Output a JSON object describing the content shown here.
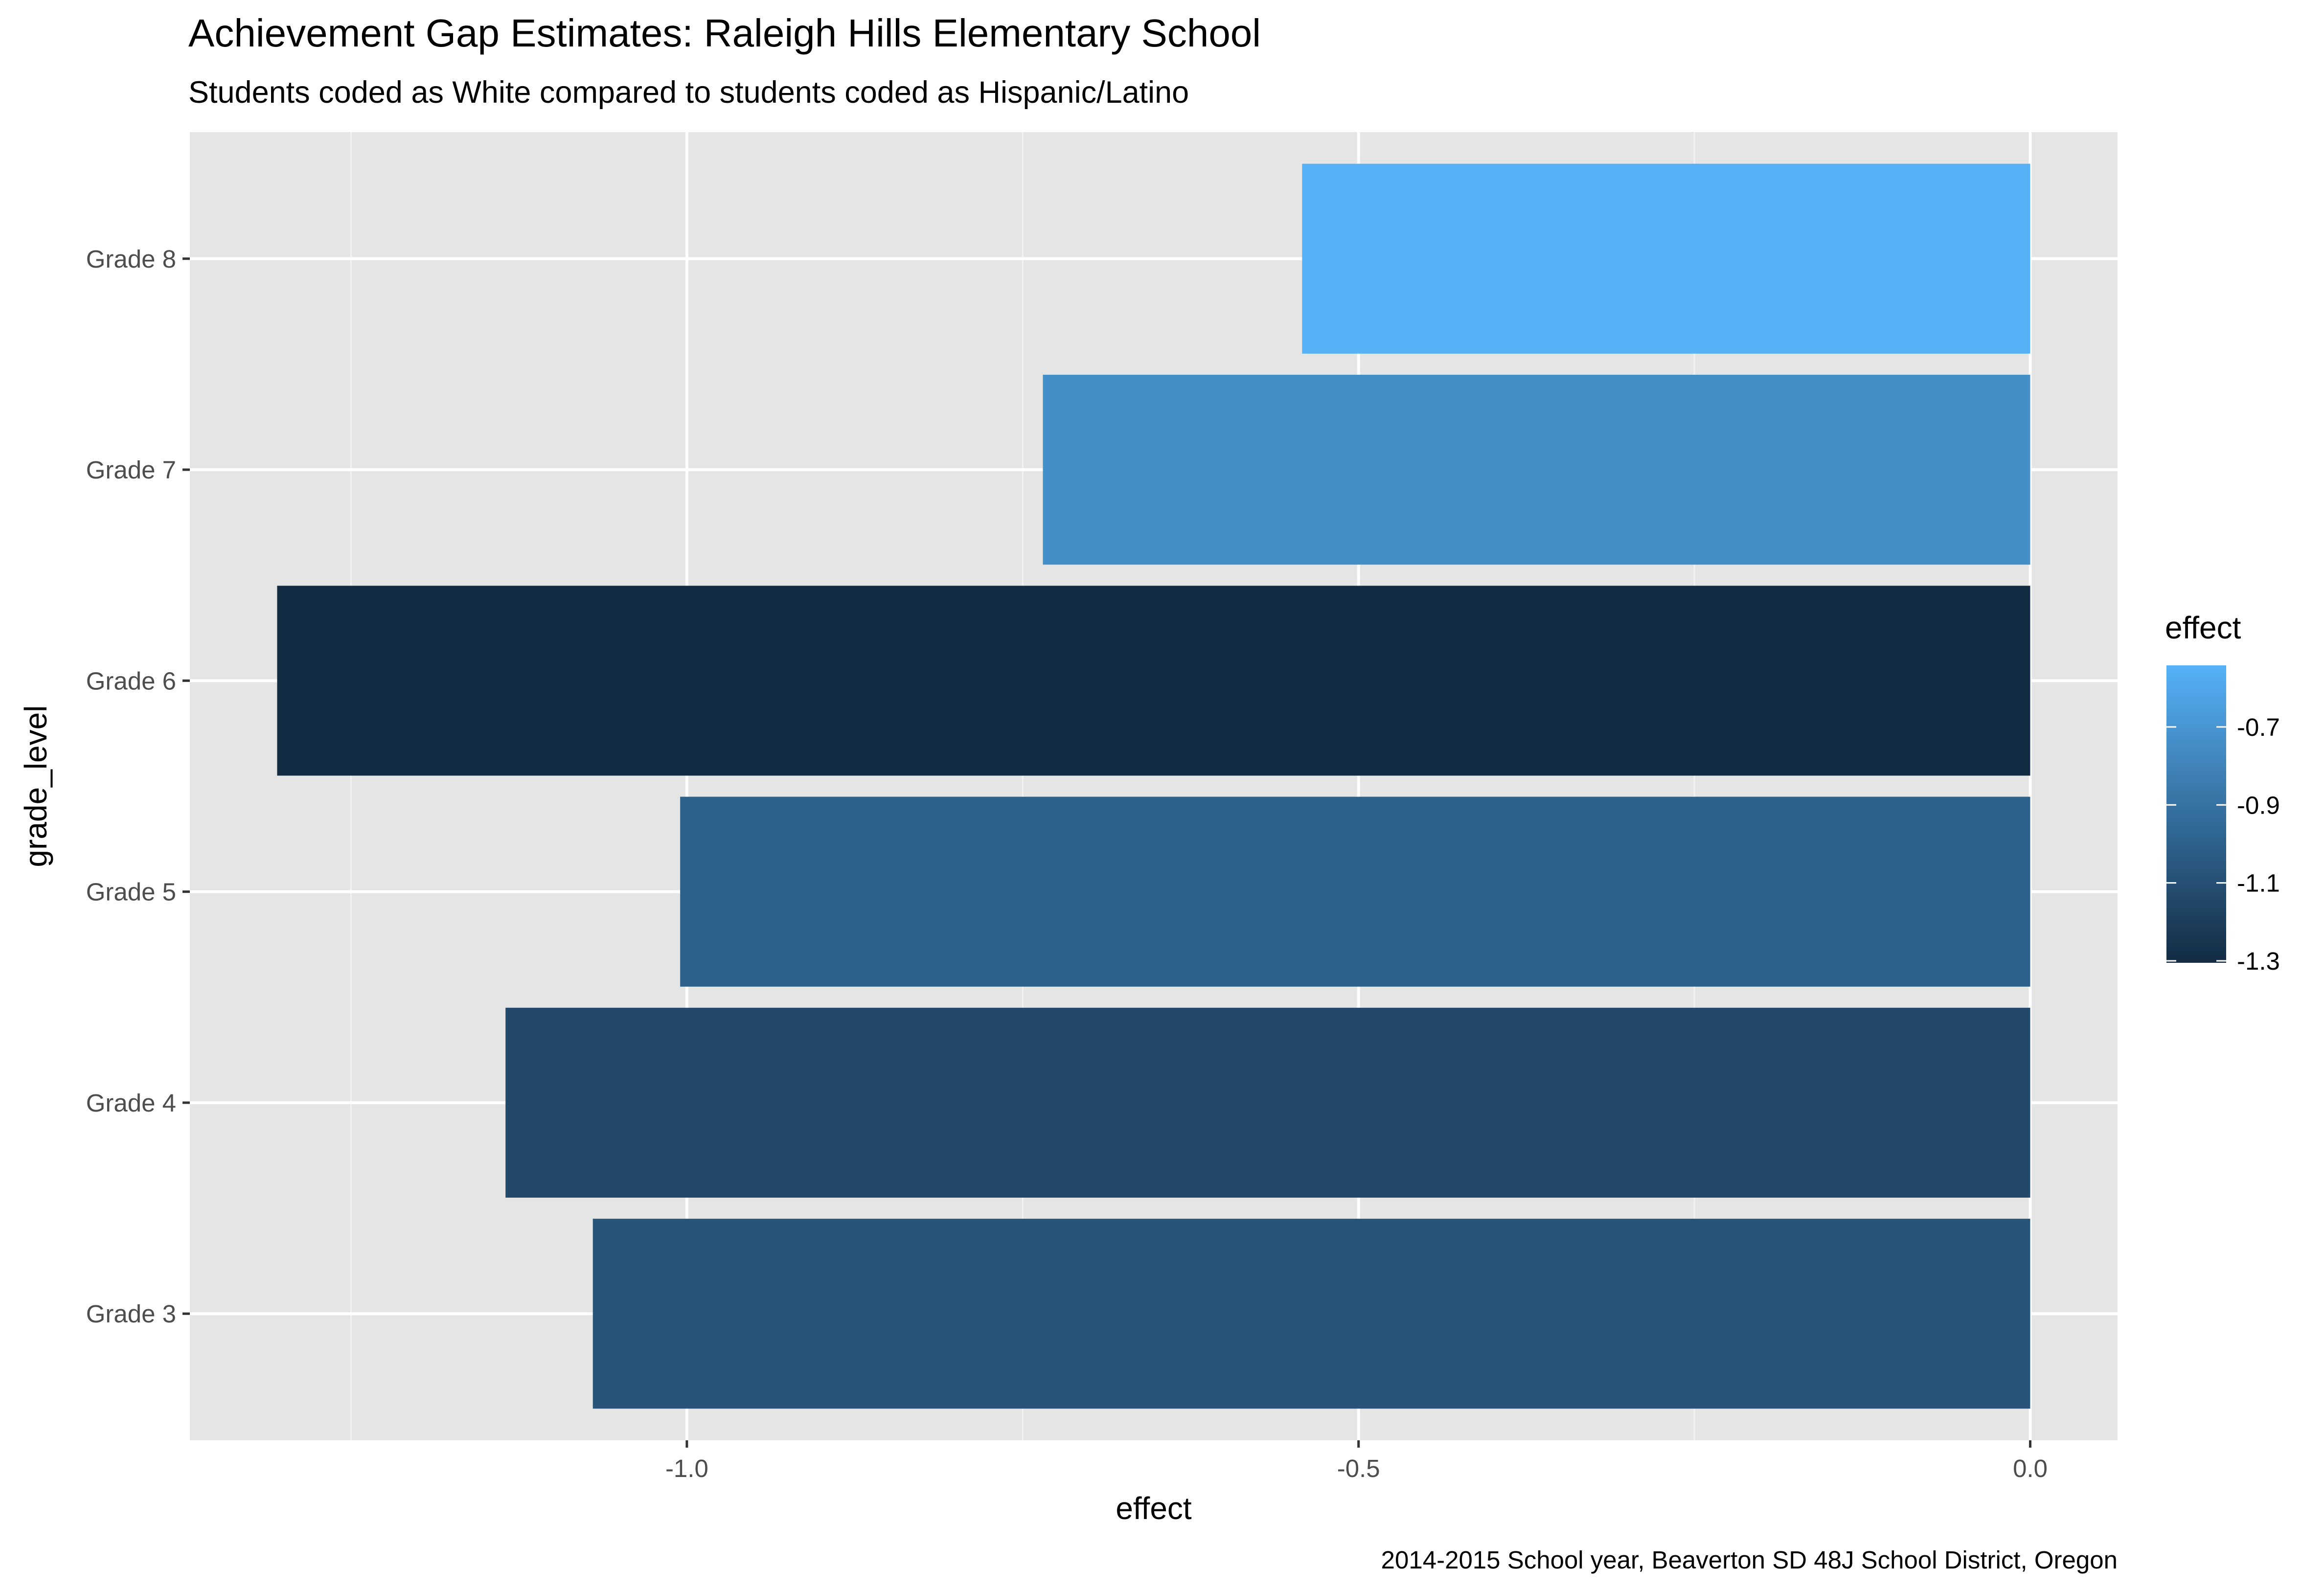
{
  "chart_data": {
    "type": "bar",
    "orientation": "horizontal",
    "title": "Achievement Gap Estimates: Raleigh Hills Elementary School",
    "subtitle": "Students coded as White compared to students coded as Hispanic/Latino",
    "caption": "2014-2015 School year, Beaverton SD 48J School District, Oregon",
    "xlabel": "effect",
    "ylabel": "grade_level",
    "categories": [
      "Grade 3",
      "Grade 4",
      "Grade 5",
      "Grade 6",
      "Grade 7",
      "Grade 8"
    ],
    "values": [
      -1.07,
      -1.135,
      -1.005,
      -1.305,
      -0.735,
      -0.542
    ],
    "xlim": [
      -1.37,
      0.065
    ],
    "x_ticks": [
      -1.0,
      -0.5,
      0.0
    ],
    "x_tick_labels": [
      "-1.0",
      "-0.5",
      "0.0"
    ],
    "grid": true,
    "legend": {
      "title": "effect",
      "placement": "right",
      "type": "colorbar",
      "range": [
        -1.305,
        -0.542
      ],
      "ticks": [
        -0.7,
        -0.9,
        -1.1,
        -1.3
      ],
      "tick_labels": [
        "-0.7",
        "-0.9",
        "-1.1",
        "-1.3"
      ],
      "color_low": "#132B43",
      "color_high": "#56B1F7"
    },
    "colors": {
      "panel_background": "#E5E5E5",
      "grid_major": "#FFFFFF",
      "grid_minor": "#F2F2F2"
    }
  }
}
